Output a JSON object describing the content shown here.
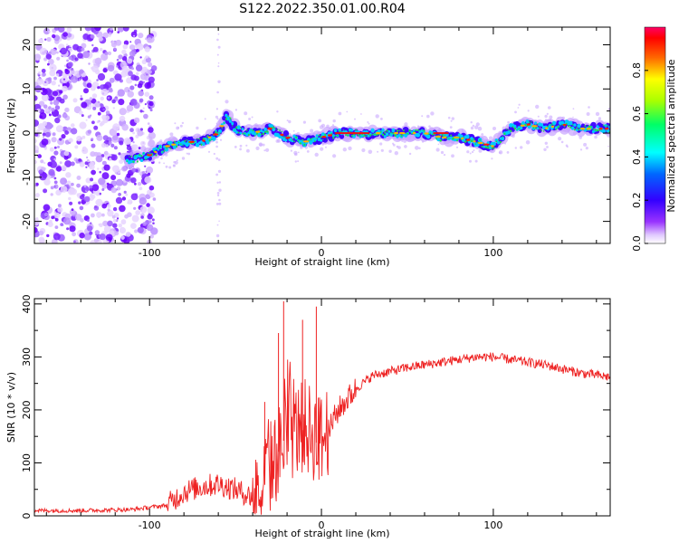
{
  "figure_title": "S122.2022.350.01.00.R04",
  "chart_data": [
    {
      "type": "heatmap",
      "title": "",
      "xlabel": "Height of straight line (km)",
      "ylabel": "Frequency (Hz)",
      "xlim": [
        -167,
        168
      ],
      "ylim": [
        -25,
        24
      ],
      "xticks": [
        -100,
        0,
        100
      ],
      "yticks": [
        -20,
        -10,
        0,
        10,
        20
      ],
      "colorbar": {
        "label": "Normalized spectral amplitude",
        "range": [
          0,
          1
        ],
        "ticks": [
          "0.0",
          "0.2",
          "0.4",
          "0.6",
          "0.8"
        ],
        "colors": [
          "#ffffff",
          "#cc99ff",
          "#6600ff",
          "#0000ff",
          "#00ffff",
          "#00ff00",
          "#ffff00",
          "#ff0000",
          "#ff0066"
        ]
      },
      "ridge": {
        "x": [
          -110,
          -100,
          -90,
          -80,
          -70,
          -60,
          -55,
          -50,
          -40,
          -30,
          -20,
          -10,
          0,
          10,
          20,
          30,
          40,
          50,
          60,
          70,
          80,
          90,
          100,
          110,
          120,
          130,
          140,
          150,
          160,
          168
        ],
        "y": [
          -6,
          -5,
          -3,
          -2,
          -2,
          0,
          4,
          1,
          0,
          1,
          -1,
          -2,
          -1,
          0,
          0,
          0,
          0,
          0,
          0,
          -1,
          -1,
          -2,
          -3,
          1,
          2,
          1,
          2,
          1,
          1,
          1
        ]
      }
    },
    {
      "type": "line",
      "title": "",
      "xlabel": "Height of straight line (km)",
      "ylabel": "SNR (10 * v/v)",
      "xlim": [
        -167,
        168
      ],
      "ylim": [
        0,
        410
      ],
      "xticks": [
        -100,
        0,
        100
      ],
      "yticks": [
        0,
        100,
        200,
        300,
        400
      ],
      "color": "#ee2222",
      "trend": {
        "x": [
          -167,
          -140,
          -110,
          -90,
          -80,
          -70,
          -60,
          -50,
          -40,
          -30,
          -20,
          -10,
          0,
          10,
          20,
          30,
          50,
          70,
          90,
          100,
          110,
          130,
          150,
          168
        ],
        "y": [
          10,
          10,
          12,
          20,
          45,
          55,
          60,
          50,
          35,
          90,
          150,
          170,
          140,
          200,
          240,
          265,
          280,
          290,
          300,
          300,
          295,
          285,
          270,
          262
        ]
      },
      "spikes": [
        {
          "x": -22,
          "y": 405
        },
        {
          "x": -25,
          "y": 345
        },
        {
          "x": -3,
          "y": 395
        },
        {
          "x": -11,
          "y": 370
        },
        {
          "x": -33,
          "y": 215
        }
      ]
    }
  ]
}
